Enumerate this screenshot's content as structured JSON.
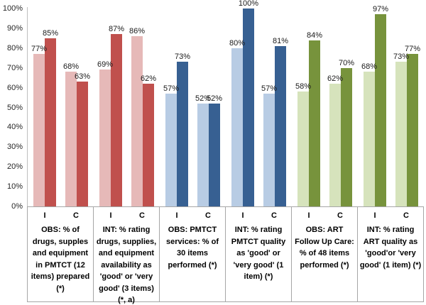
{
  "chart_data": {
    "type": "bar",
    "title": "",
    "unit": "%",
    "ylim": [
      0,
      100
    ],
    "y_ticks": [
      "0%",
      "10%",
      "20%",
      "30%",
      "40%",
      "50%",
      "60%",
      "70%",
      "80%",
      "90%",
      "100%"
    ],
    "grid": false,
    "legend_position": "none",
    "sub_labels": [
      "I",
      "C"
    ],
    "palettes": {
      "red": {
        "light": "#E6B9B8",
        "dark": "#C0504D"
      },
      "blue": {
        "light": "#B8CCE4",
        "dark": "#376092"
      },
      "green": {
        "light": "#D6E3BC",
        "dark": "#77933C"
      }
    },
    "axis_color": "#BFBFBF",
    "table_border_color": "#A6A6A6",
    "groups": [
      {
        "palette": "red",
        "label": "OBS: % of drugs, supples and equipment in PMTCT (12 items) prepared (*)",
        "values": {
          "I": {
            "light": 77,
            "dark": 85
          },
          "C": {
            "light": 68,
            "dark": 63
          }
        }
      },
      {
        "palette": "red",
        "label": "INT: % rating drugs, supplies, and equipment availability as 'good' or 'very good' (3 items) (*, a)",
        "values": {
          "I": {
            "light": 69,
            "dark": 87
          },
          "C": {
            "light": 86,
            "dark": 62
          }
        }
      },
      {
        "palette": "blue",
        "label": "OBS: PMTCT services: % of 30 items performed (*)",
        "values": {
          "I": {
            "light": 57,
            "dark": 73
          },
          "C": {
            "light": 52,
            "dark": 52
          }
        }
      },
      {
        "palette": "blue",
        "label": "INT: % rating PMTCT quality as 'good' or 'very good' (1 item)  (*)",
        "values": {
          "I": {
            "light": 80,
            "dark": 100
          },
          "C": {
            "light": 57,
            "dark": 81
          }
        }
      },
      {
        "palette": "green",
        "label": "OBS: ART Follow Up Care: % of 48 items performed (*)",
        "values": {
          "I": {
            "light": 58,
            "dark": 84
          },
          "C": {
            "light": 62,
            "dark": 70
          }
        }
      },
      {
        "palette": "green",
        "label": "INT: % rating ART quality as 'good'or 'very good' (1 item)  (*)",
        "values": {
          "I": {
            "light": 68,
            "dark": 97
          },
          "C": {
            "light": 73,
            "dark": 77
          }
        }
      }
    ]
  }
}
